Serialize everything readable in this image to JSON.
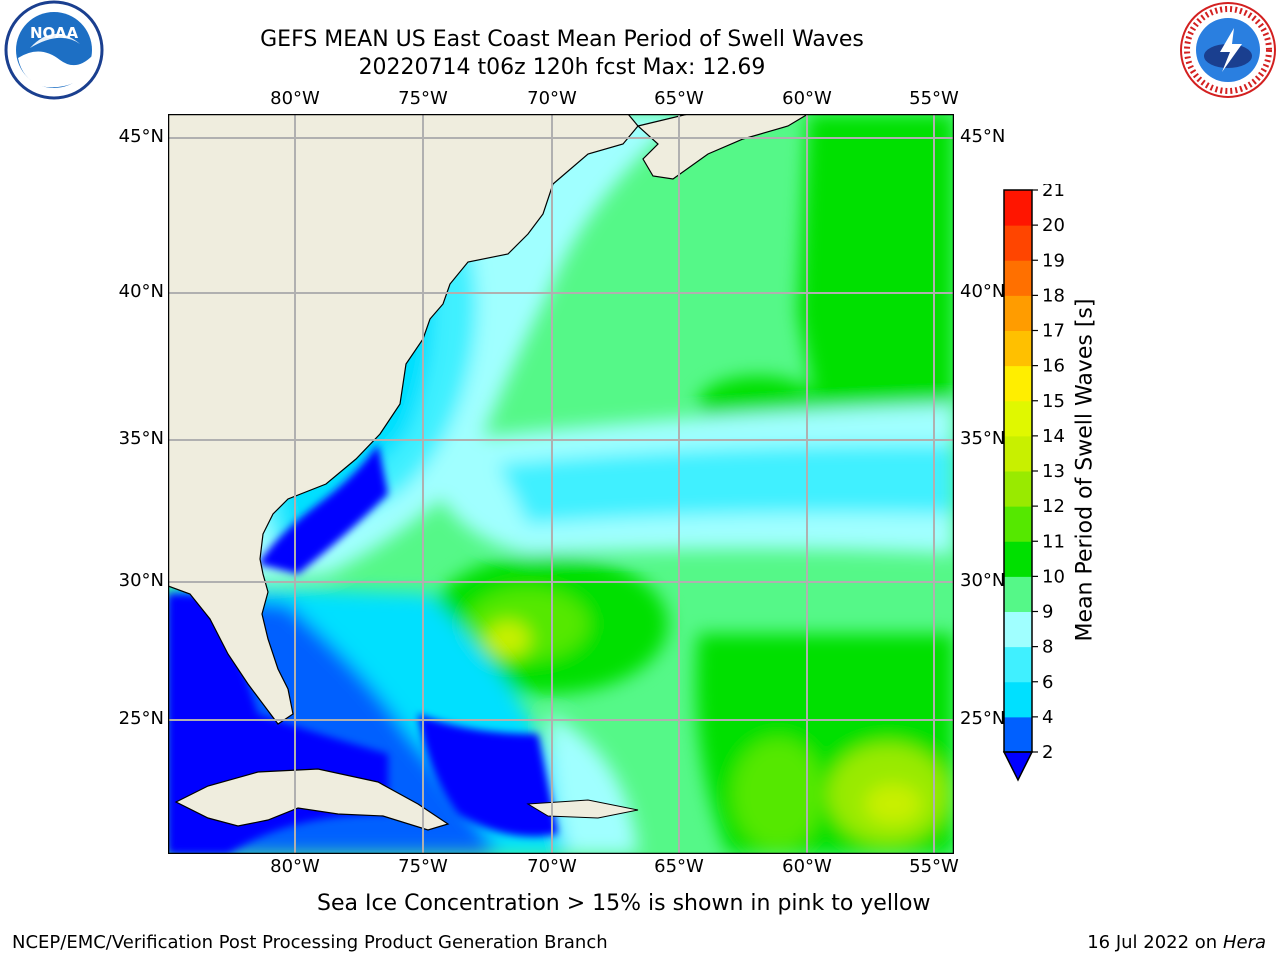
{
  "header": {
    "title_line1": "GEFS MEAN US East Coast Mean Period of Swell Waves",
    "title_line2": "20220714 t06z 120h fcst   Max: 12.69"
  },
  "logos": {
    "left": {
      "name": "noaa-logo",
      "text": "NOAA"
    },
    "right": {
      "name": "nws-logo",
      "text": "NATIONAL WEATHER SERVICE"
    }
  },
  "map": {
    "lon_labels": [
      "80°W",
      "75°W",
      "70°W",
      "65°W",
      "60°W",
      "55°W"
    ],
    "lat_labels": [
      "45°N",
      "40°N",
      "35°N",
      "30°N",
      "25°N"
    ],
    "colors": {
      "land": "#efedde",
      "grid": "#b0b0b0",
      "coast": "#000000"
    }
  },
  "colorbar": {
    "label": "Mean Period of Swell Waves [s]",
    "ticks": [
      "2",
      "4",
      "6",
      "8",
      "9",
      "10",
      "11",
      "12",
      "13",
      "14",
      "15",
      "16",
      "17",
      "18",
      "19",
      "20",
      "21"
    ],
    "colors": [
      "#0000ff",
      "#0060ff",
      "#00e0ff",
      "#40f0ff",
      "#a0ffff",
      "#55f888",
      "#00e000",
      "#55e800",
      "#99ea00",
      "#c8f000",
      "#e0f800",
      "#ffee00",
      "#ffc000",
      "#ff9c00",
      "#ff7000",
      "#ff4500",
      "#ff1500",
      "#ff0000"
    ],
    "extend_color": "#0000ff"
  },
  "caption": "Sea Ice Concentration > 15% is shown in pink to yellow",
  "footer": {
    "left": "NCEP/EMC/Verification Post Processing Product Generation Branch",
    "right_prefix": "16 Jul 2022 on ",
    "right_machine": "Hera"
  }
}
